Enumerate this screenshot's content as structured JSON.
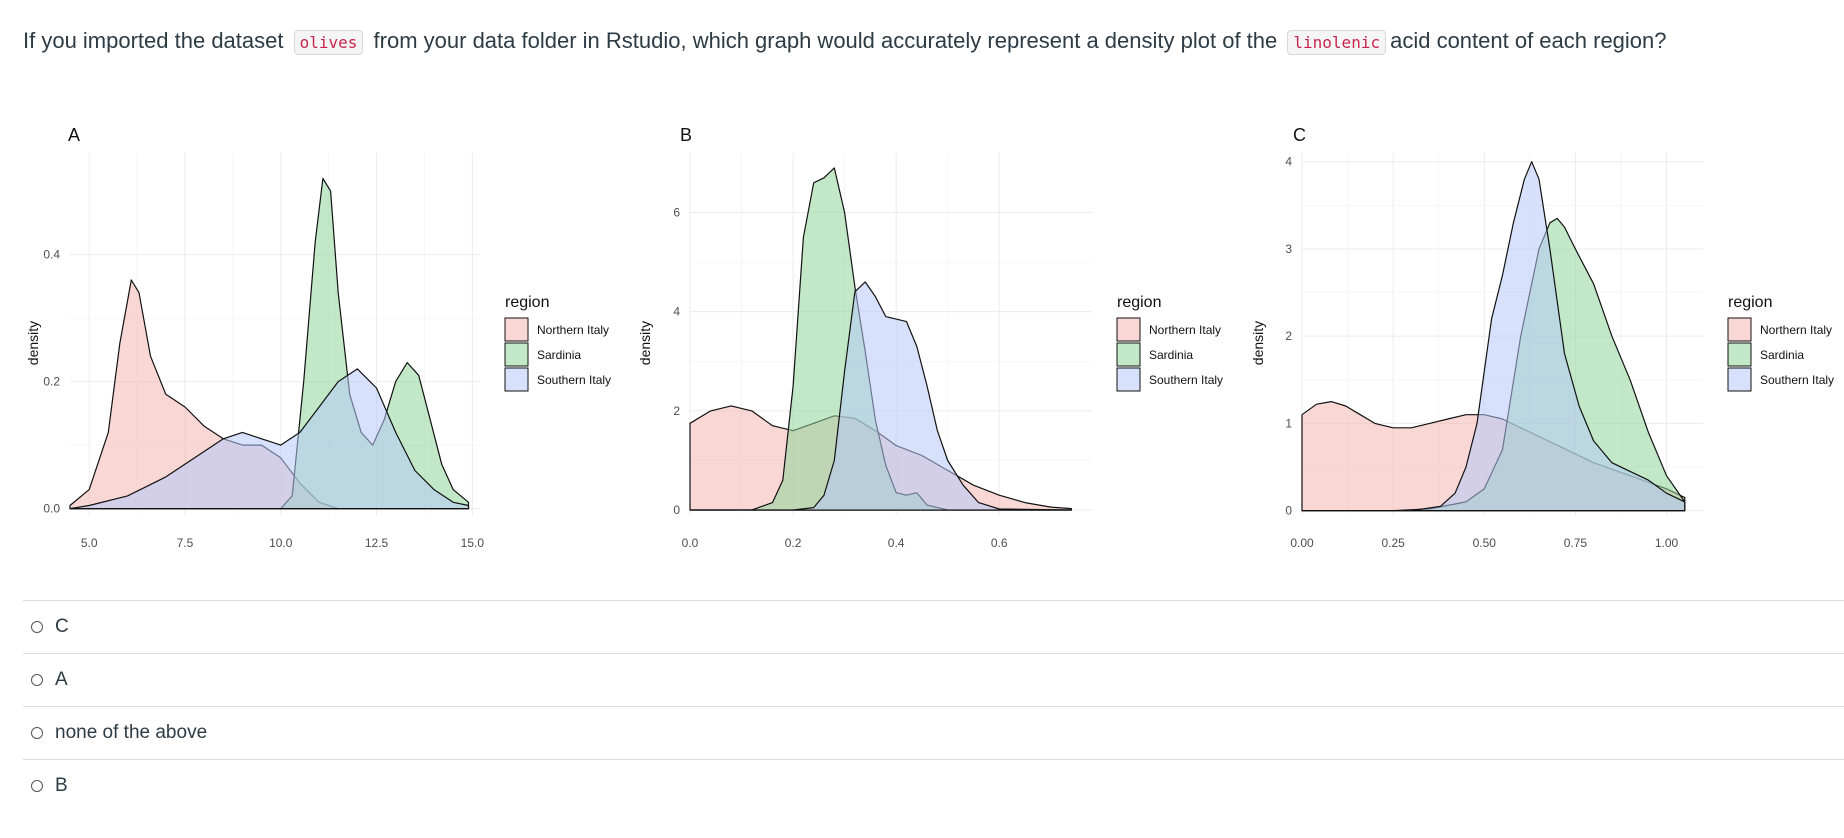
{
  "question": {
    "part1": "If you imported the dataset",
    "dataset": "olives",
    "part2": "from your data folder in Rstudio, which graph would accurately represent a density plot of the",
    "variable": "linolenic",
    "part3": "acid content of each region?"
  },
  "colors": {
    "Northern Italy": "#f4b6b3",
    "Sardinia": "#8fd59b",
    "Southern Italy": "#b7c9f8"
  },
  "chart_data": [
    {
      "panel": "A",
      "type": "area",
      "ylabel": "density",
      "legend_title": "region",
      "legend": "right",
      "grid": true,
      "xlim": [
        4.5,
        15.2
      ],
      "ylim": [
        -0.01,
        0.56
      ],
      "xticks": [
        5.0,
        7.5,
        10.0,
        12.5,
        15.0
      ],
      "xtick_labels": [
        "5.0",
        "7.5",
        "10.0",
        "12.5",
        "15.0"
      ],
      "yticks": [
        0.0,
        0.2,
        0.4
      ],
      "ytick_labels": [
        "0.0",
        "0.2",
        "0.4"
      ],
      "series": [
        {
          "name": "Northern Italy",
          "x": [
            4.5,
            5.0,
            5.5,
            5.8,
            6.1,
            6.3,
            6.6,
            7.0,
            7.5,
            8.0,
            8.5,
            9.0,
            9.5,
            10.0,
            10.5,
            11.0,
            11.5,
            12.0,
            14.9
          ],
          "y": [
            0.005,
            0.03,
            0.12,
            0.26,
            0.36,
            0.34,
            0.24,
            0.18,
            0.16,
            0.13,
            0.11,
            0.1,
            0.1,
            0.08,
            0.04,
            0.01,
            0.0,
            0.0,
            0.0
          ]
        },
        {
          "name": "Sardinia",
          "x": [
            4.5,
            10.0,
            10.3,
            10.6,
            10.9,
            11.1,
            11.3,
            11.5,
            11.8,
            12.1,
            12.4,
            12.7,
            13.0,
            13.3,
            13.6,
            13.9,
            14.2,
            14.5,
            14.9
          ],
          "y": [
            0.0,
            0.0,
            0.02,
            0.2,
            0.42,
            0.52,
            0.5,
            0.34,
            0.18,
            0.12,
            0.1,
            0.14,
            0.2,
            0.23,
            0.21,
            0.14,
            0.07,
            0.03,
            0.01
          ]
        },
        {
          "name": "Southern Italy",
          "x": [
            4.5,
            5.0,
            6.0,
            7.0,
            8.0,
            8.5,
            9.0,
            9.5,
            10.0,
            10.5,
            11.0,
            11.5,
            12.0,
            12.5,
            13.0,
            13.5,
            14.0,
            14.5,
            14.9
          ],
          "y": [
            0.0,
            0.005,
            0.02,
            0.05,
            0.09,
            0.11,
            0.12,
            0.11,
            0.1,
            0.12,
            0.16,
            0.2,
            0.22,
            0.19,
            0.12,
            0.06,
            0.03,
            0.01,
            0.005
          ]
        }
      ]
    },
    {
      "panel": "B",
      "type": "area",
      "ylabel": "density",
      "legend_title": "region",
      "legend": "right",
      "grid": true,
      "xlim": [
        0.0,
        0.78
      ],
      "ylim": [
        -0.1,
        7.2
      ],
      "xticks": [
        0.0,
        0.2,
        0.4,
        0.6
      ],
      "xtick_labels": [
        "0.0",
        "0.2",
        "0.4",
        "0.6"
      ],
      "yticks": [
        0,
        2,
        4,
        6
      ],
      "ytick_labels": [
        "0",
        "2",
        "4",
        "6"
      ],
      "series": [
        {
          "name": "Northern Italy",
          "x": [
            0.0,
            0.04,
            0.08,
            0.12,
            0.16,
            0.2,
            0.24,
            0.28,
            0.32,
            0.36,
            0.4,
            0.45,
            0.5,
            0.55,
            0.6,
            0.65,
            0.7,
            0.74
          ],
          "y": [
            1.75,
            2.0,
            2.1,
            2.0,
            1.7,
            1.6,
            1.75,
            1.9,
            1.85,
            1.6,
            1.3,
            1.1,
            0.8,
            0.5,
            0.3,
            0.15,
            0.06,
            0.03
          ]
        },
        {
          "name": "Sardinia",
          "x": [
            0.0,
            0.12,
            0.16,
            0.18,
            0.2,
            0.22,
            0.24,
            0.26,
            0.28,
            0.3,
            0.32,
            0.34,
            0.36,
            0.38,
            0.4,
            0.42,
            0.44,
            0.46,
            0.5,
            0.74
          ],
          "y": [
            0.0,
            0.0,
            0.15,
            0.6,
            2.5,
            5.5,
            6.6,
            6.7,
            6.9,
            6.0,
            4.5,
            3.2,
            1.8,
            0.9,
            0.35,
            0.3,
            0.35,
            0.1,
            0.0,
            0.0
          ]
        },
        {
          "name": "Southern Italy",
          "x": [
            0.0,
            0.2,
            0.24,
            0.26,
            0.28,
            0.3,
            0.32,
            0.34,
            0.36,
            0.38,
            0.4,
            0.42,
            0.44,
            0.46,
            0.48,
            0.5,
            0.53,
            0.56,
            0.6,
            0.74
          ],
          "y": [
            0.0,
            0.0,
            0.05,
            0.3,
            1.0,
            2.8,
            4.4,
            4.6,
            4.3,
            3.9,
            3.85,
            3.8,
            3.3,
            2.5,
            1.6,
            1.0,
            0.5,
            0.15,
            0.02,
            0.0
          ]
        }
      ]
    },
    {
      "panel": "C",
      "type": "area",
      "ylabel": "density",
      "legend_title": "region",
      "legend": "right",
      "grid": true,
      "xlim": [
        0.0,
        1.1
      ],
      "ylim": [
        -0.05,
        4.1
      ],
      "xticks": [
        0.0,
        0.25,
        0.5,
        0.75,
        1.0
      ],
      "xtick_labels": [
        "0.00",
        "0.25",
        "0.50",
        "0.75",
        "1.00"
      ],
      "yticks": [
        0,
        1,
        2,
        3,
        4
      ],
      "ytick_labels": [
        "0",
        "1",
        "2",
        "3",
        "4"
      ],
      "series": [
        {
          "name": "Northern Italy",
          "x": [
            0.0,
            0.04,
            0.08,
            0.12,
            0.16,
            0.2,
            0.25,
            0.3,
            0.35,
            0.4,
            0.45,
            0.5,
            0.55,
            0.6,
            0.65,
            0.7,
            0.8,
            0.9,
            1.0,
            1.05
          ],
          "y": [
            1.1,
            1.22,
            1.25,
            1.2,
            1.1,
            1.0,
            0.95,
            0.95,
            1.0,
            1.05,
            1.1,
            1.1,
            1.05,
            0.95,
            0.85,
            0.75,
            0.55,
            0.4,
            0.25,
            0.15
          ]
        },
        {
          "name": "Sardinia",
          "x": [
            0.0,
            0.25,
            0.35,
            0.45,
            0.5,
            0.55,
            0.6,
            0.65,
            0.68,
            0.7,
            0.72,
            0.75,
            0.8,
            0.85,
            0.9,
            0.95,
            1.0,
            1.05
          ],
          "y": [
            0.0,
            0.0,
            0.02,
            0.1,
            0.25,
            0.7,
            2.0,
            3.0,
            3.3,
            3.35,
            3.25,
            3.0,
            2.6,
            2.0,
            1.5,
            0.9,
            0.4,
            0.1
          ]
        },
        {
          "name": "Southern Italy",
          "x": [
            0.0,
            0.3,
            0.38,
            0.42,
            0.45,
            0.48,
            0.52,
            0.55,
            0.58,
            0.61,
            0.63,
            0.65,
            0.68,
            0.72,
            0.76,
            0.8,
            0.85,
            0.9,
            0.95,
            1.0,
            1.05
          ],
          "y": [
            0.0,
            0.0,
            0.05,
            0.2,
            0.5,
            1.0,
            2.2,
            2.7,
            3.3,
            3.8,
            4.0,
            3.8,
            3.0,
            1.8,
            1.2,
            0.8,
            0.55,
            0.45,
            0.35,
            0.2,
            0.1
          ]
        }
      ]
    }
  ],
  "answers": [
    {
      "label": "C"
    },
    {
      "label": "A"
    },
    {
      "label": "none of the above"
    },
    {
      "label": "B"
    }
  ]
}
